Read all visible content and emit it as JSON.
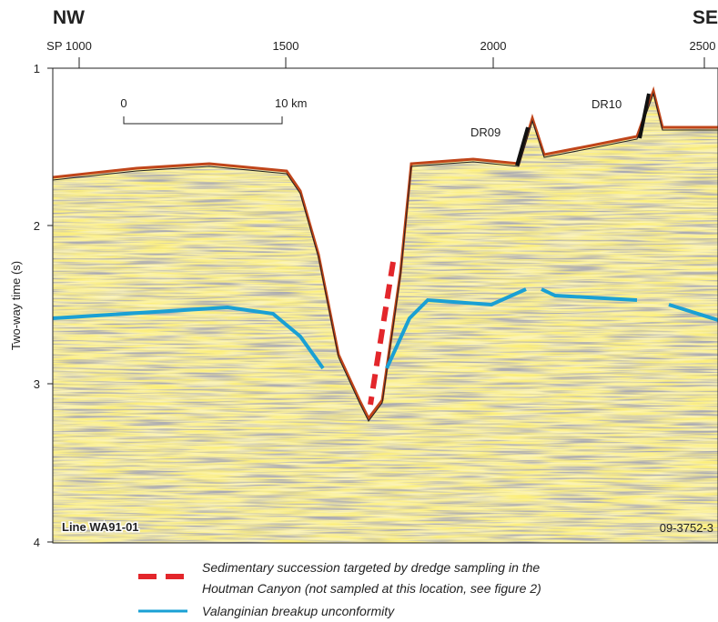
{
  "header": {
    "left": "NW",
    "right": "SE"
  },
  "top_axis": {
    "ticks": [
      "SP 1000",
      "1500",
      "2000",
      "2500"
    ]
  },
  "left_axis": {
    "label": "Two-way time (s)",
    "ticks": [
      "1",
      "2",
      "3",
      "4"
    ]
  },
  "scale_bar": {
    "start": "0",
    "end": "10 km"
  },
  "annotations": {
    "dr09": "DR09",
    "dr10": "DR10",
    "line_name": "Line WA91-01",
    "figure_id": "09-3752-3"
  },
  "legend": [
    {
      "lines": [
        "Sedimentary succession targeted by dredge sampling in the",
        "Houtman Canyon (not sampled at this location, see figure 2)"
      ]
    },
    {
      "lines": [
        "Valanginian breakup unconformity"
      ]
    }
  ]
}
